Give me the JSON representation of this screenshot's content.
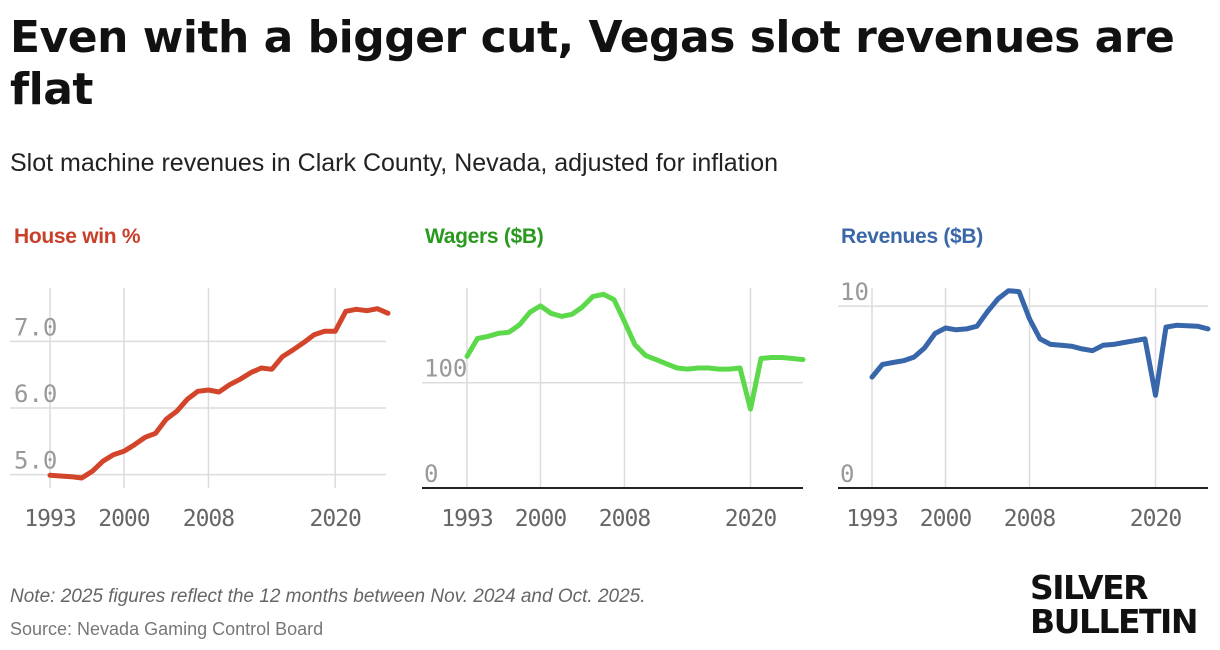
{
  "header": {
    "title": "Even with a bigger cut, Vegas slot revenues are flat",
    "subtitle": "Slot machine revenues in Clark County, Nevada, adjusted for inflation"
  },
  "footer": {
    "note": "Note: 2025 figures reflect the 12 months between Nov. 2024 and Oct. 2025.",
    "source": "Source: Nevada Gaming Control Board"
  },
  "logo": {
    "line1": "SILVER",
    "line2": "BULLETIN"
  },
  "colors": {
    "red_line": "#d3452b",
    "red_title": "#c8402a",
    "green_line": "#5cd94a",
    "green_title": "#2a9a1f",
    "blue_line": "#3767aa",
    "blue_title": "#3a67a8",
    "grid": "#dcdcdc",
    "axis": "#222222",
    "tick": "#999999"
  },
  "chart_data": [
    {
      "type": "line",
      "title": "House win %",
      "x": [
        1993,
        1994,
        1995,
        1996,
        1997,
        1998,
        1999,
        2000,
        2001,
        2002,
        2003,
        2004,
        2005,
        2006,
        2007,
        2008,
        2009,
        2010,
        2011,
        2012,
        2013,
        2014,
        2015,
        2016,
        2017,
        2018,
        2019,
        2020,
        2021,
        2022,
        2023,
        2024,
        2025
      ],
      "series": [
        {
          "name": "House win %",
          "values": [
            4.99,
            4.98,
            4.97,
            4.95,
            5.05,
            5.2,
            5.3,
            5.35,
            5.45,
            5.56,
            5.62,
            5.83,
            5.95,
            6.13,
            6.25,
            6.27,
            6.24,
            6.35,
            6.43,
            6.53,
            6.6,
            6.58,
            6.77,
            6.87,
            6.98,
            7.1,
            7.15,
            7.15,
            7.45,
            7.48,
            7.46,
            7.49,
            7.42
          ]
        }
      ],
      "xticks": [
        "1993",
        "2000",
        "2008",
        "2020"
      ],
      "yticks": [
        "5.0",
        "6.0",
        "7.0"
      ],
      "ylim": [
        4.8,
        7.8
      ]
    },
    {
      "type": "line",
      "title": "Wagers ($B)",
      "x": [
        1993,
        1994,
        1995,
        1996,
        1997,
        1998,
        1999,
        2000,
        2001,
        2002,
        2003,
        2004,
        2005,
        2006,
        2007,
        2008,
        2009,
        2010,
        2011,
        2012,
        2013,
        2014,
        2015,
        2016,
        2017,
        2018,
        2019,
        2020,
        2021,
        2022,
        2023,
        2024,
        2025
      ],
      "series": [
        {
          "name": "Wagers ($B)",
          "values": [
            125,
            142,
            144,
            147,
            148,
            155,
            167,
            173,
            166,
            163,
            165,
            172,
            182,
            184,
            179,
            158,
            136,
            126,
            122,
            118,
            114,
            113,
            114,
            114,
            113,
            113,
            114,
            75,
            123,
            124,
            124,
            123,
            122
          ]
        }
      ],
      "xticks": [
        "1993",
        "2000",
        "2008",
        "2020"
      ],
      "yticks": [
        "0",
        "100"
      ],
      "ylim": [
        0,
        190
      ]
    },
    {
      "type": "line",
      "title": "Revenues ($B)",
      "x": [
        1993,
        1994,
        1995,
        1996,
        1997,
        1998,
        1999,
        2000,
        2001,
        2002,
        2003,
        2004,
        2005,
        2006,
        2007,
        2008,
        2009,
        2010,
        2011,
        2012,
        2013,
        2014,
        2015,
        2016,
        2017,
        2018,
        2019,
        2020,
        2021,
        2022,
        2023,
        2024,
        2025
      ],
      "series": [
        {
          "name": "Revenues ($B)",
          "values": [
            6.1,
            6.8,
            6.9,
            7.0,
            7.2,
            7.7,
            8.5,
            8.8,
            8.7,
            8.75,
            8.9,
            9.7,
            10.4,
            10.85,
            10.8,
            9.3,
            8.2,
            7.9,
            7.85,
            7.8,
            7.65,
            7.55,
            7.85,
            7.9,
            8.0,
            8.1,
            8.2,
            5.1,
            8.85,
            8.95,
            8.92,
            8.9,
            8.75
          ]
        }
      ],
      "xticks": [
        "1993",
        "2000",
        "2008",
        "2020"
      ],
      "yticks": [
        "0",
        "10"
      ],
      "ylim": [
        0,
        11
      ]
    }
  ]
}
